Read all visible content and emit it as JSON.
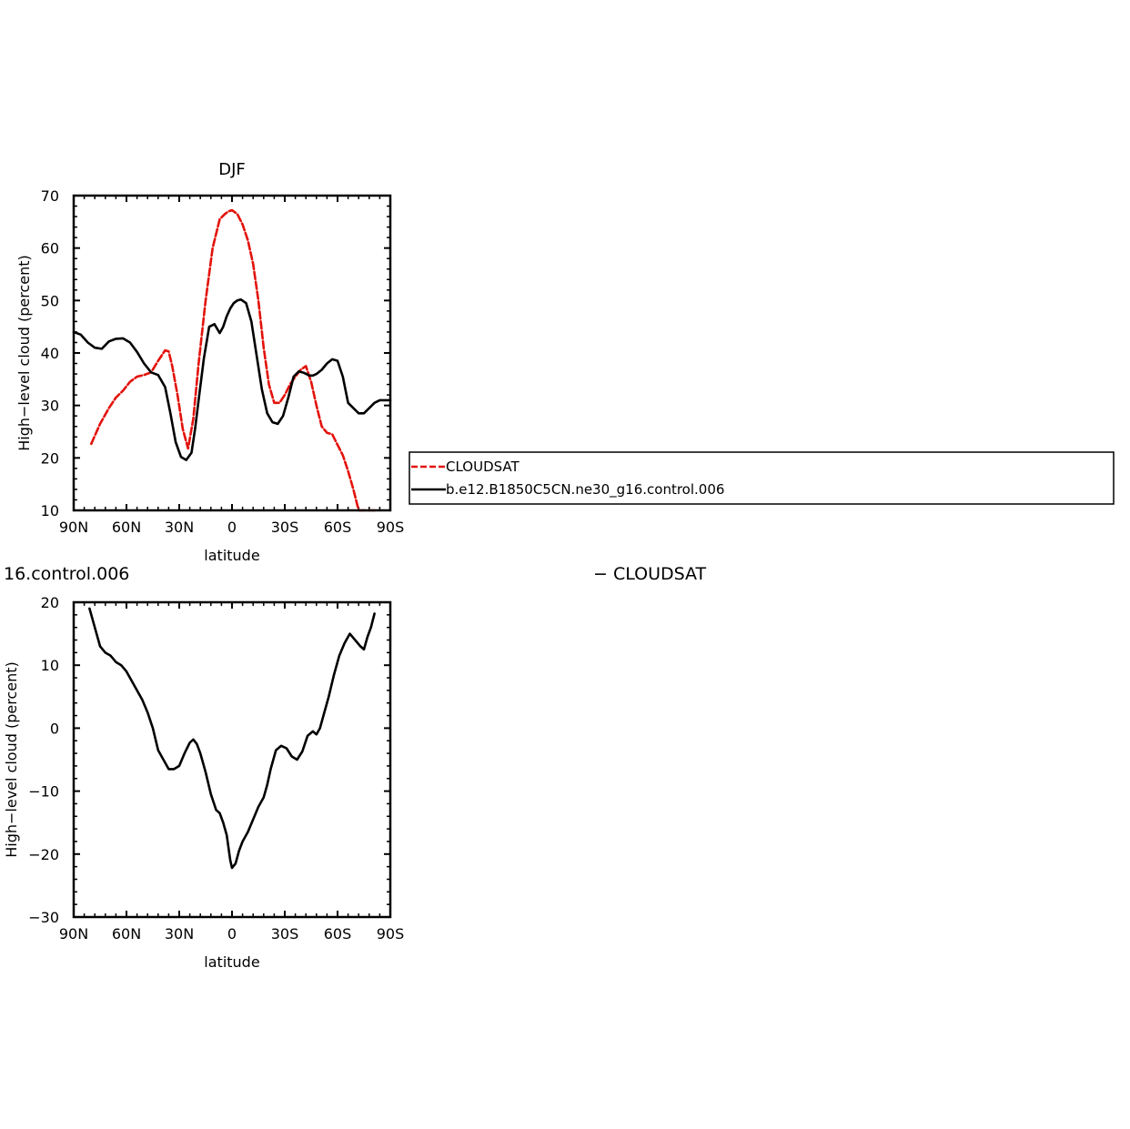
{
  "figure": {
    "top_title": "DJF",
    "bottom_title": "16.control.006",
    "bottom_subtitle": "− CLOUDSAT"
  },
  "legend": {
    "items": [
      {
        "label": "CLOUDSAT",
        "color": "#e3120b",
        "dash": "dashed"
      },
      {
        "label": "b.e12.B1850C5CN.ne30_g16.control.006",
        "color": "#000000",
        "dash": "solid"
      }
    ]
  },
  "chart_data": [
    {
      "type": "line",
      "title": "DJF",
      "xlabel": "latitude",
      "ylabel": "High−level cloud (percent)",
      "xlim": [
        90,
        -90
      ],
      "ylim": [
        10,
        70
      ],
      "xticks": [
        {
          "value": 90,
          "label": "90N"
        },
        {
          "value": 60,
          "label": "60N"
        },
        {
          "value": 30,
          "label": "30N"
        },
        {
          "value": 0,
          "label": "0"
        },
        {
          "value": -30,
          "label": "30S"
        },
        {
          "value": -60,
          "label": "60S"
        },
        {
          "value": -90,
          "label": "90S"
        }
      ],
      "yticks": [
        {
          "value": 10,
          "label": "10"
        },
        {
          "value": 20,
          "label": "20"
        },
        {
          "value": 30,
          "label": "30"
        },
        {
          "value": 40,
          "label": "40"
        },
        {
          "value": 50,
          "label": "50"
        },
        {
          "value": 60,
          "label": "60"
        },
        {
          "value": 70,
          "label": "70"
        }
      ],
      "series": [
        {
          "name": "CLOUDSAT",
          "color": "#e3120b",
          "dash": "dashed",
          "x": [
            80,
            75,
            70,
            66,
            62,
            58,
            54,
            50,
            46,
            42,
            38,
            36,
            34,
            31,
            28,
            25,
            22,
            19,
            15,
            11,
            7,
            4,
            2,
            0,
            -3,
            -6,
            -9,
            -12,
            -15,
            -18,
            -21,
            -24,
            -27,
            -30,
            -33,
            -36,
            -39,
            -42,
            -45,
            -48,
            -51,
            -54,
            -57,
            -60,
            -63,
            -66,
            -69,
            -72,
            -75,
            -78,
            -81
          ],
          "values": [
            22.7,
            26.5,
            29.5,
            31.5,
            32.8,
            34.5,
            35.5,
            35.8,
            36.3,
            38.5,
            40.5,
            40.3,
            37.5,
            32,
            25.5,
            21.8,
            27.5,
            38,
            50,
            60,
            65.5,
            66.5,
            67,
            67.2,
            66.5,
            64.5,
            61.5,
            57,
            50,
            41,
            34,
            30.5,
            30.5,
            32,
            34,
            35.5,
            36.8,
            37.5,
            34.5,
            30,
            26,
            24.8,
            24.5,
            22.5,
            20.5,
            17.5,
            14,
            10,
            10,
            10,
            10
          ]
        },
        {
          "name": "b.e12.B1850C5CN.ne30_g16.control.006",
          "color": "#000000",
          "dash": "solid",
          "x": [
            90,
            86,
            82,
            78,
            74,
            70,
            66,
            62,
            58,
            54,
            50,
            46,
            42,
            38,
            35,
            32,
            29,
            26,
            23,
            21,
            19,
            16,
            13,
            10,
            7,
            5,
            3,
            1,
            -1,
            -3,
            -5,
            -8,
            -11,
            -14,
            -17,
            -20,
            -23,
            -26,
            -29,
            -32,
            -35,
            -38,
            -41,
            -44,
            -46,
            -48,
            -51,
            -54,
            -57,
            -60,
            -63,
            -66,
            -69,
            -72,
            -75,
            -78,
            -81,
            -84,
            -87,
            -90
          ],
          "values": [
            44,
            43.5,
            42,
            41,
            40.8,
            42.2,
            42.7,
            42.8,
            42,
            40.2,
            38,
            36.3,
            35.8,
            33.5,
            28.5,
            23,
            20.2,
            19.6,
            21,
            25.5,
            31,
            39,
            45,
            45.5,
            43.8,
            45,
            47,
            48.5,
            49.5,
            50,
            50.2,
            49.5,
            46,
            39.5,
            33,
            28.5,
            26.8,
            26.5,
            28,
            31.5,
            35.5,
            36.5,
            36.2,
            35.7,
            35.7,
            36,
            36.8,
            38,
            38.8,
            38.5,
            35.5,
            30.5,
            29.5,
            28.5,
            28.5,
            29.5,
            30.5,
            31,
            31,
            31
          ]
        }
      ]
    },
    {
      "type": "line",
      "title": "16.control.006",
      "subtitle": "− CLOUDSAT",
      "xlabel": "latitude",
      "ylabel": "High−level cloud (percent)",
      "xlim": [
        90,
        -90
      ],
      "ylim": [
        -30,
        20
      ],
      "xticks": [
        {
          "value": 90,
          "label": "90N"
        },
        {
          "value": 60,
          "label": "60N"
        },
        {
          "value": 30,
          "label": "30N"
        },
        {
          "value": 0,
          "label": "0"
        },
        {
          "value": -30,
          "label": "30S"
        },
        {
          "value": -60,
          "label": "60S"
        },
        {
          "value": -90,
          "label": "90S"
        }
      ],
      "yticks": [
        {
          "value": -30,
          "label": "−30"
        },
        {
          "value": -20,
          "label": "−20"
        },
        {
          "value": -10,
          "label": "−10"
        },
        {
          "value": 0,
          "label": "0"
        },
        {
          "value": 10,
          "label": "10"
        },
        {
          "value": 20,
          "label": "20"
        }
      ],
      "series": [
        {
          "color": "#000000",
          "dash": "solid",
          "x": [
            81,
            78,
            75,
            72,
            69,
            66,
            63,
            60,
            57,
            54,
            51,
            48,
            45,
            42,
            39,
            36,
            33,
            30,
            27,
            24,
            22,
            20,
            18,
            15,
            12,
            9,
            7,
            5,
            3,
            1,
            0,
            -2,
            -4,
            -6,
            -9,
            -12,
            -15,
            -18,
            -20,
            -22,
            -25,
            -28,
            -31,
            -34,
            -37,
            -40,
            -43,
            -46,
            -48,
            -50,
            -52,
            -55,
            -58,
            -61,
            -64,
            -67,
            -70,
            -73,
            -75,
            -77,
            -79,
            -81
          ],
          "values": [
            19,
            16,
            13,
            12,
            11.5,
            10.5,
            10,
            9,
            7.5,
            6,
            4.5,
            2.5,
            0,
            -3.5,
            -5,
            -6.5,
            -6.5,
            -6,
            -4,
            -2.3,
            -1.8,
            -2.5,
            -4,
            -7,
            -10.5,
            -13,
            -13.5,
            -15,
            -17,
            -21,
            -22.2,
            -21.5,
            -19.5,
            -18,
            -16.5,
            -14.5,
            -12.5,
            -11,
            -9,
            -6.5,
            -3.5,
            -2.8,
            -3.2,
            -4.5,
            -5,
            -3.7,
            -1.2,
            -0.5,
            -1,
            0,
            2,
            5,
            8.5,
            11.5,
            13.5,
            15,
            14,
            13,
            12.5,
            14.5,
            16,
            18.2
          ]
        }
      ]
    }
  ]
}
